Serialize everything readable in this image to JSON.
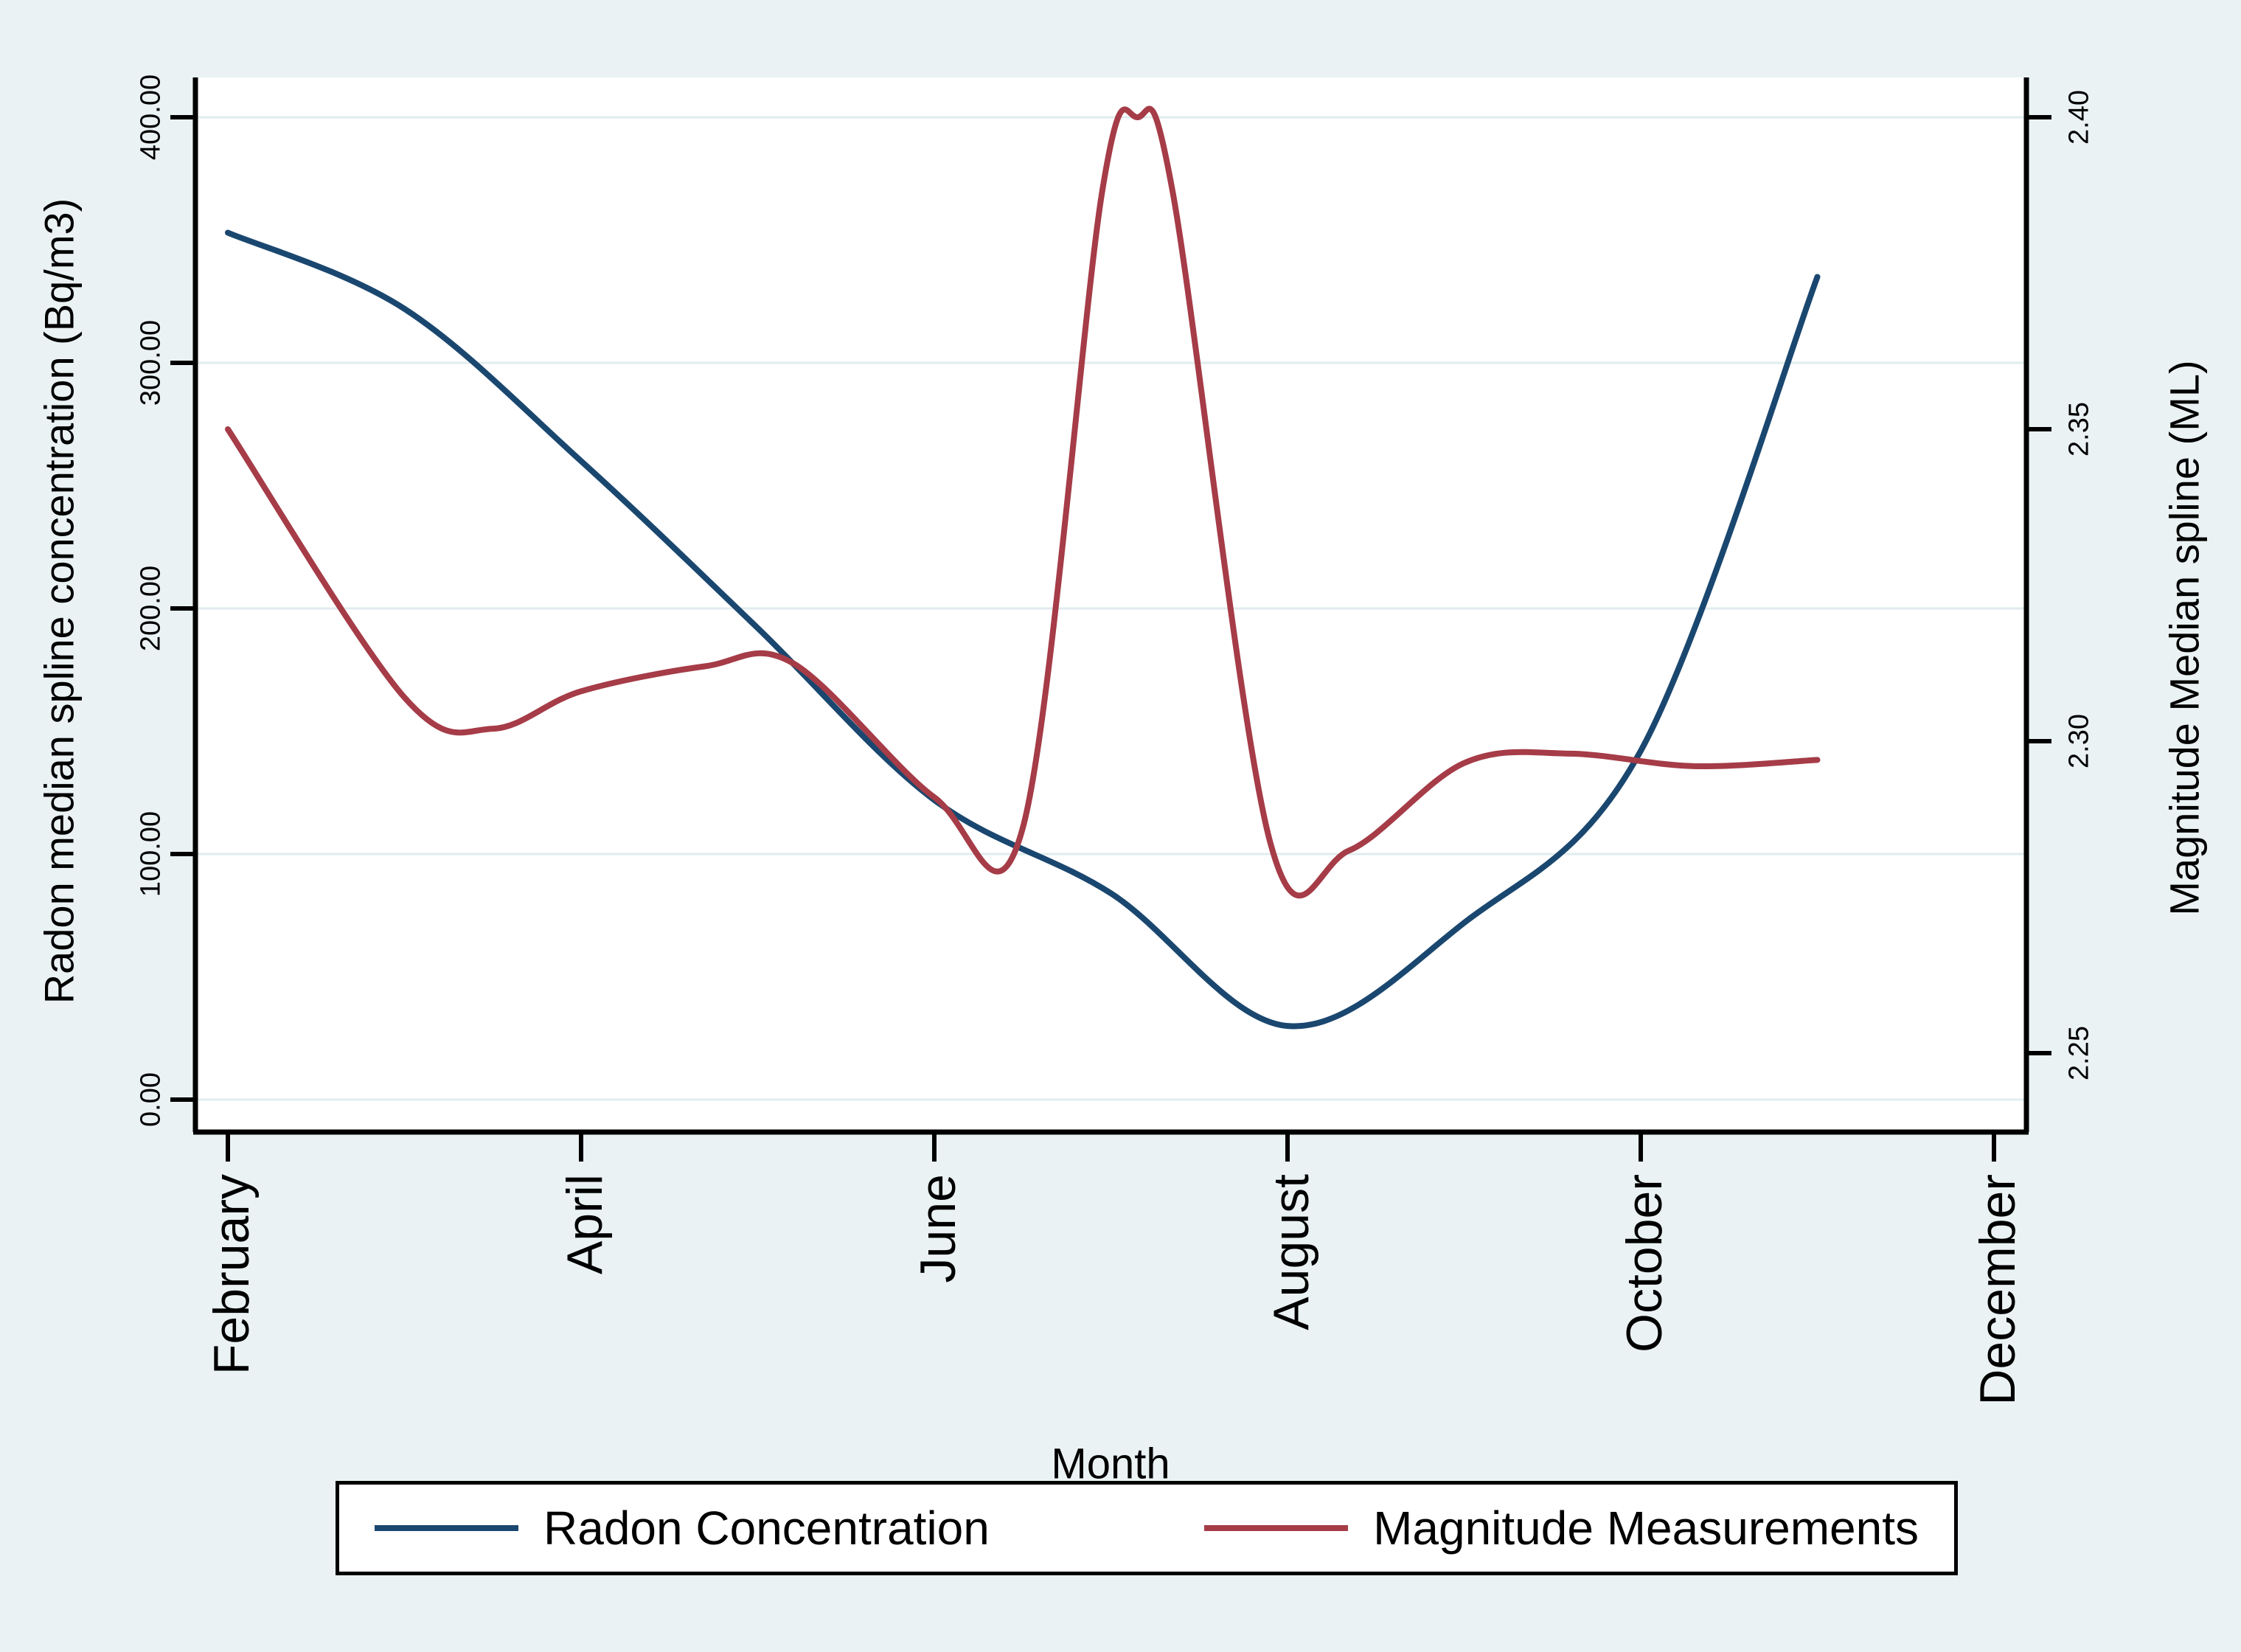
{
  "figure": {
    "background_color": "#eaf2f3",
    "plot_background_color": "#ffffff",
    "grid_color": "#e1ecee",
    "axis_color": "#000000"
  },
  "chart_data": {
    "type": "line",
    "title": "",
    "x_axis": {
      "label": "Month",
      "tick_labels": [
        "February",
        "April",
        "June",
        "August",
        "October",
        "December"
      ],
      "tick_month_numbers": [
        2,
        4,
        6,
        8,
        10,
        12
      ]
    },
    "left_y_axis": {
      "label": "Radon median spline concentration (Bq/m3)",
      "tick_labels": [
        "0.00",
        "100.00",
        "200.00",
        "300.00",
        "400.00"
      ],
      "tick_values": [
        0,
        100,
        200,
        300,
        400
      ],
      "range": [
        0,
        400
      ]
    },
    "right_y_axis": {
      "label": "Magnitude Median spline (ML)",
      "tick_labels": [
        "2.25",
        "2.30",
        "2.35",
        "2.40"
      ],
      "tick_values": [
        2.25,
        2.3,
        2.35,
        2.4
      ],
      "range": [
        2.25,
        2.4
      ]
    },
    "grid": "horizontal gridlines at left-axis ticks only",
    "legend_position": "bottom",
    "series": [
      {
        "name": "Radon Concentration",
        "y_axis": "left",
        "color": "#1a476f",
        "x_months": [
          2,
          3,
          4,
          5,
          6,
          7,
          8,
          9,
          10,
          11
        ],
        "values": [
          353,
          322,
          260,
          192,
          122,
          84,
          30,
          72,
          142,
          335
        ]
      },
      {
        "name": "Magnitude Measurements",
        "y_axis": "right",
        "color": "#a53c47",
        "x_months": [
          2,
          3,
          3.5,
          4,
          4.7,
          5.2,
          6,
          6.5,
          6.95,
          7.15,
          7.35,
          7.9,
          8.35,
          9,
          9.6,
          10.3,
          11
        ],
        "values": [
          2.35,
          2.307,
          2.302,
          2.308,
          2.312,
          2.3125,
          2.291,
          2.286,
          2.388,
          2.4,
          2.388,
          2.284,
          2.2825,
          2.2965,
          2.298,
          2.296,
          2.297
        ]
      }
    ]
  },
  "legend": {
    "items": [
      {
        "label": "Radon Concentration",
        "color": "#1a476f"
      },
      {
        "label": "Magnitude Measurements",
        "color": "#a53c47"
      }
    ]
  }
}
